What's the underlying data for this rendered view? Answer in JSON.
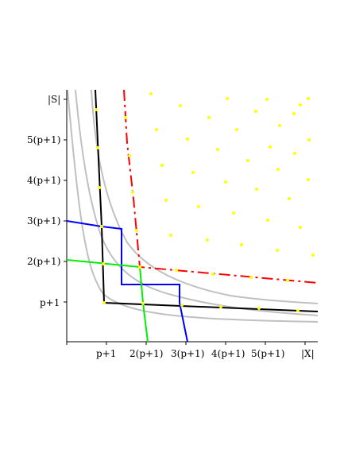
{
  "diagram": {
    "x_axis_label": "|X|",
    "y_axis_label": "|S|",
    "x_ticks": [
      "p+1",
      "2(p+1)",
      "3(p+1)",
      "4(p+1)",
      "5(p+1)"
    ],
    "y_ticks": [
      "p+1",
      "2(p+1)",
      "3(p+1)",
      "4(p+1)",
      "5(p+1)"
    ],
    "colors": {
      "axes": "#000000",
      "hyperbola": "#c0c0c0",
      "black_curve": "#000000",
      "blue_curve": "#0000ff",
      "green_curve": "#00ee00",
      "red_dashed": "#ff0000",
      "points": "#ffff00"
    }
  }
}
